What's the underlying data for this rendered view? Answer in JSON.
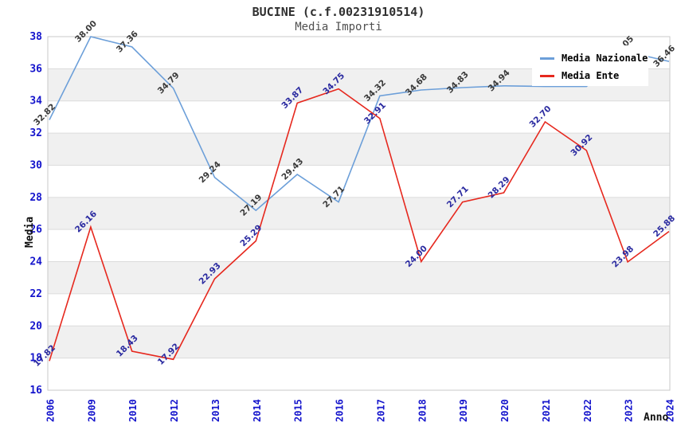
{
  "chart_data": {
    "type": "line",
    "title": "BUCINE (c.f.00231910514)",
    "subtitle": "Media Importi",
    "xlabel": "Anno",
    "ylabel": "Media",
    "ylim": [
      16,
      38
    ],
    "y_ticks": [
      16,
      18,
      20,
      22,
      24,
      26,
      28,
      30,
      32,
      34,
      36,
      38
    ],
    "grid": "horizontal-bands",
    "legend_position": "top-right",
    "categories": [
      "2006",
      "2009",
      "2010",
      "2012",
      "2013",
      "2014",
      "2015",
      "2016",
      "2017",
      "2018",
      "2019",
      "2020",
      "2021",
      "2022",
      "2023",
      "2024"
    ],
    "series": [
      {
        "name": "Media Nazionale",
        "color": "#6c9fd9",
        "label_color": "#3a3a3a",
        "values": [
          32.82,
          38.0,
          37.36,
          34.79,
          29.24,
          27.19,
          29.43,
          27.71,
          34.32,
          34.68,
          34.83,
          34.94,
          34.9,
          34.9,
          37.05,
          36.46
        ],
        "point_labels": [
          "32.82",
          "38.00",
          "37.36",
          "34.79",
          "29.24",
          "27.19",
          "29.43",
          "27.71",
          "34.32",
          "34.68",
          "34.83",
          "34.94",
          "",
          "",
          "37.05",
          "36.46"
        ]
      },
      {
        "name": "Media Ente",
        "color": "#e6281e",
        "label_color": "#2a2aa0",
        "values": [
          17.82,
          26.16,
          18.43,
          17.92,
          22.93,
          25.29,
          33.87,
          34.75,
          32.91,
          24.0,
          27.71,
          28.29,
          32.7,
          30.92,
          23.98,
          25.88
        ],
        "point_labels": [
          "17.82",
          "26.16",
          "18.43",
          "17.92",
          "22.93",
          "25.29",
          "33.87",
          "34.75",
          "32.91",
          "24.00",
          "27.71",
          "28.29",
          "32.70",
          "30.92",
          "23.98",
          "25.88"
        ]
      }
    ],
    "colors": {
      "background": "#ffffff",
      "band": "#f0f0f0",
      "grid": "#dcdcdc",
      "border": "#c9c9c9",
      "tick_labels": "#1414cc",
      "title": "#303030",
      "subtitle": "#505050",
      "axis_titles": "#101010"
    }
  }
}
